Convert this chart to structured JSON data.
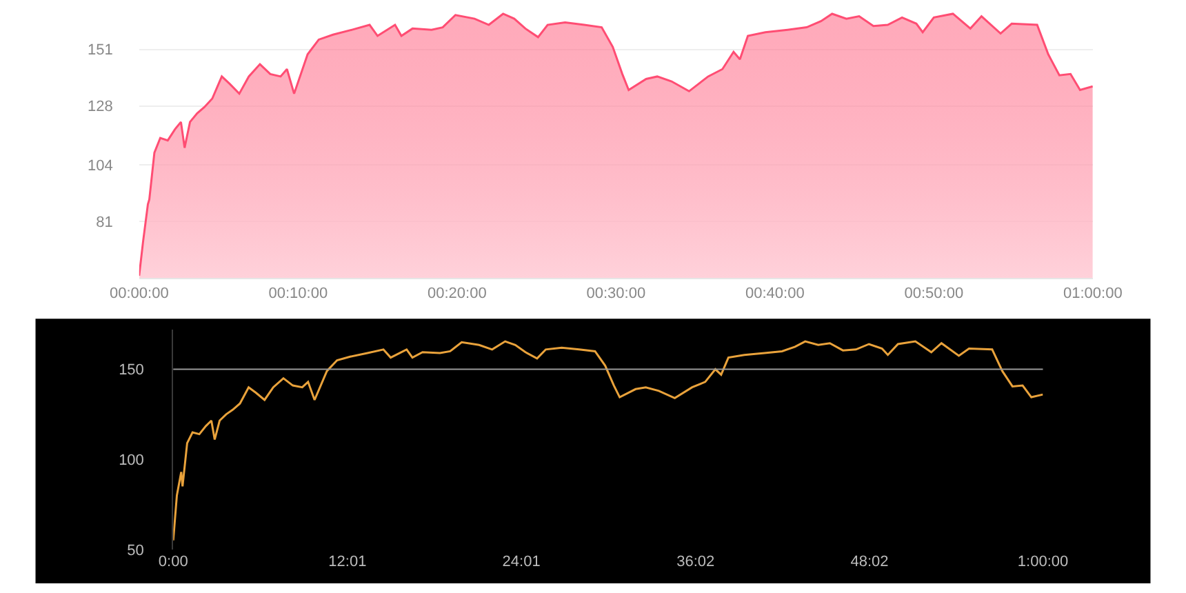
{
  "chart_data": [
    {
      "type": "area",
      "x": [
        0,
        0.25,
        0.55,
        0.64,
        0.96,
        1.33,
        1.8,
        2.25,
        2.63,
        2.86,
        3.2,
        3.65,
        4.1,
        4.6,
        5.2,
        5.7,
        6.3,
        6.9,
        7.6,
        8.25,
        8.9,
        9.3,
        9.75,
        10.6,
        11.3,
        12.2,
        13.4,
        14.5,
        15,
        16.1,
        16.5,
        17.2,
        18.4,
        19.1,
        19.9,
        21.1,
        22,
        22.9,
        23.6,
        24.3,
        25.1,
        25.7,
        26.8,
        28,
        29.1,
        29.8,
        30.4,
        30.8,
        31.9,
        32.6,
        33.5,
        34.6,
        35.8,
        36.7,
        37.4,
        37.8,
        38.3,
        39.4,
        40.8,
        42,
        42.9,
        43.6,
        44.5,
        45.3,
        46.2,
        47.1,
        48,
        48.9,
        49.3,
        50,
        51.2,
        52.3,
        53,
        54.2,
        54.9,
        56.5,
        57.2,
        57.9,
        58.6,
        59.2,
        60
      ],
      "series": [
        {
          "color": "#ff4d73",
          "values": [
            59,
            73,
            88,
            90,
            109,
            115,
            114,
            118.5,
            121.5,
            111,
            121.5,
            125,
            127.5,
            131,
            140,
            137,
            133,
            140,
            145,
            141,
            140,
            143,
            133,
            149,
            155,
            157,
            159,
            161,
            156.5,
            161,
            156.5,
            159.5,
            159,
            160,
            165,
            163.5,
            161,
            165.5,
            163.5,
            159.5,
            156,
            161,
            162,
            161,
            160,
            152,
            141,
            134.5,
            139,
            140,
            138,
            134,
            140,
            143,
            150,
            147,
            156.5,
            158,
            159,
            160,
            162.5,
            165.5,
            163.5,
            164.5,
            160.5,
            161,
            164,
            161.5,
            158,
            164,
            165.5,
            159.5,
            164.5,
            157.5,
            161.5,
            161,
            149,
            140.5,
            141,
            134.5,
            136
          ]
        }
      ],
      "ylim": [
        58,
        170
      ],
      "yticks": [
        81,
        104,
        128,
        151
      ],
      "xlim": [
        0,
        60
      ],
      "xticks": [
        {
          "value": 0,
          "label": "00:00:00"
        },
        {
          "value": 10,
          "label": "00:10:00"
        },
        {
          "value": 20,
          "label": "00:20:00"
        },
        {
          "value": 30,
          "label": "00:30:00"
        },
        {
          "value": 40,
          "label": "00:40:00"
        },
        {
          "value": 50,
          "label": "00:50:00"
        },
        {
          "value": 60,
          "label": "01:00:00"
        }
      ],
      "grid": "y"
    },
    {
      "type": "line",
      "x": [
        0,
        0.25,
        0.55,
        0.64,
        0.96,
        1.33,
        1.8,
        2.25,
        2.63,
        2.86,
        3.2,
        3.65,
        4.1,
        4.6,
        5.2,
        5.7,
        6.3,
        6.9,
        7.6,
        8.25,
        8.9,
        9.3,
        9.75,
        10.6,
        11.3,
        12.2,
        13.4,
        14.5,
        15,
        16.1,
        16.5,
        17.2,
        18.4,
        19.1,
        19.9,
        21.1,
        22,
        22.9,
        23.6,
        24.3,
        25.1,
        25.7,
        26.8,
        28,
        29.1,
        29.8,
        30.4,
        30.8,
        31.9,
        32.6,
        33.5,
        34.6,
        35.8,
        36.7,
        37.4,
        37.8,
        38.3,
        39.4,
        40.8,
        42,
        42.9,
        43.6,
        44.5,
        45.3,
        46.2,
        47.1,
        48,
        48.9,
        49.3,
        50,
        51.2,
        52.3,
        53,
        54.2,
        54.9,
        56.5,
        57.2,
        57.9,
        58.6,
        59.2,
        60
      ],
      "series": [
        {
          "color": "#e9a23b",
          "values": [
            55,
            80,
            93,
            85,
            109,
            115,
            114,
            118.5,
            121.5,
            111,
            121.5,
            125,
            127.5,
            131,
            140,
            137,
            133,
            140,
            145,
            141,
            140,
            143,
            133,
            149,
            155,
            157,
            159,
            161,
            156.5,
            161,
            156.5,
            159.5,
            159,
            160,
            165,
            163.5,
            161,
            165.5,
            163.5,
            159.5,
            156,
            161,
            162,
            161,
            160,
            152,
            141,
            134.5,
            139,
            140,
            138,
            134,
            140,
            143,
            150,
            147,
            156.5,
            158,
            159,
            160,
            162.5,
            165.5,
            163.5,
            164.5,
            160.5,
            161,
            164,
            161.5,
            158,
            164,
            165.5,
            159.5,
            164.5,
            157.5,
            161.5,
            161,
            149,
            140.5,
            141,
            134.5,
            136
          ]
        }
      ],
      "ylim": [
        50,
        172
      ],
      "yticks": [
        50,
        100,
        150
      ],
      "xlim": [
        0,
        60
      ],
      "xticks": [
        {
          "value": 0,
          "label": "0:00"
        },
        {
          "value": 12.017,
          "label": "12:01"
        },
        {
          "value": 24.017,
          "label": "24:01"
        },
        {
          "value": 36.033,
          "label": "36:02"
        },
        {
          "value": 48.033,
          "label": "48:02"
        },
        {
          "value": 60,
          "label": "1:00:00"
        }
      ],
      "ref_lines": [
        {
          "axis": "y",
          "value": 150,
          "color": "#9a9a9a"
        }
      ],
      "grid": false
    }
  ]
}
